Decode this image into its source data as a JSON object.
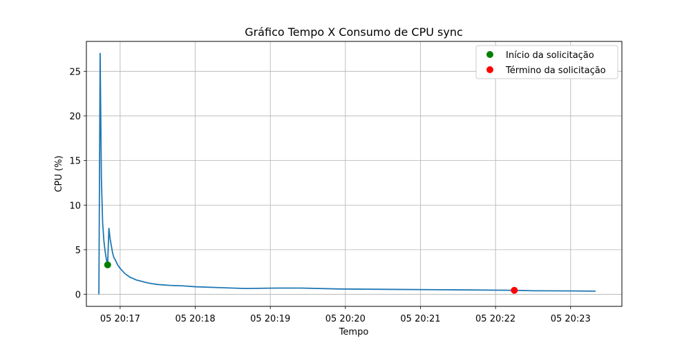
{
  "chart_data": {
    "type": "line",
    "title": "Gráfico Tempo X Consumo de CPU sync",
    "xlabel": "Tempo",
    "ylabel": "CPU (%)",
    "grid": true,
    "legend_position": "top-right",
    "xlim": [
      "05 20:16:33",
      "05 20:23:41"
    ],
    "ylim": [
      -1.35,
      28.35
    ],
    "x_ticks": [
      "05 20:17",
      "05 20:18",
      "05 20:19",
      "05 20:20",
      "05 20:21",
      "05 20:22",
      "05 20:23"
    ],
    "y_ticks": [
      0,
      5,
      10,
      15,
      20,
      25
    ],
    "series": [
      {
        "name": "",
        "color": "#1f77b4",
        "x": [
          "05 20:16:43",
          "05 20:16:44",
          "05 20:16:45",
          "05 20:16:46",
          "05 20:16:47",
          "05 20:16:48",
          "05 20:16:49",
          "05 20:16:50",
          "05 20:16:51",
          "05 20:16:52",
          "05 20:16:53",
          "05 20:16:54",
          "05 20:16:55",
          "05 20:16:56",
          "05 20:16:57",
          "05 20:16:58",
          "05 20:17:00",
          "05 20:17:02",
          "05 20:17:04",
          "05 20:17:06",
          "05 20:17:08",
          "05 20:17:10",
          "05 20:17:13",
          "05 20:17:16",
          "05 20:17:20",
          "05 20:17:25",
          "05 20:17:30",
          "05 20:17:40",
          "05 20:17:50",
          "05 20:18:00",
          "05 20:18:20",
          "05 20:18:40",
          "05 20:19:05",
          "05 20:19:25",
          "05 20:19:55",
          "05 20:20:40",
          "05 20:21:30",
          "05 20:22:15",
          "05 20:22:30",
          "05 20:23:00",
          "05 20:23:20"
        ],
        "y": [
          0.0,
          27.0,
          13.0,
          8.0,
          6.0,
          4.8,
          3.9,
          3.3,
          7.4,
          6.2,
          5.4,
          4.6,
          4.1,
          3.9,
          3.6,
          3.3,
          2.9,
          2.6,
          2.3,
          2.1,
          1.9,
          1.8,
          1.6,
          1.5,
          1.35,
          1.2,
          1.1,
          1.0,
          0.95,
          0.85,
          0.75,
          0.65,
          0.7,
          0.7,
          0.6,
          0.55,
          0.5,
          0.45,
          0.4,
          0.38,
          0.35
        ]
      }
    ],
    "markers": [
      {
        "name": "Início da solicitação",
        "color": "#008000",
        "x": "05 20:16:50",
        "y": 3.3
      },
      {
        "name": "Término da solicitação",
        "color": "#ff0000",
        "x": "05 20:22:15",
        "y": 0.45
      }
    ]
  }
}
